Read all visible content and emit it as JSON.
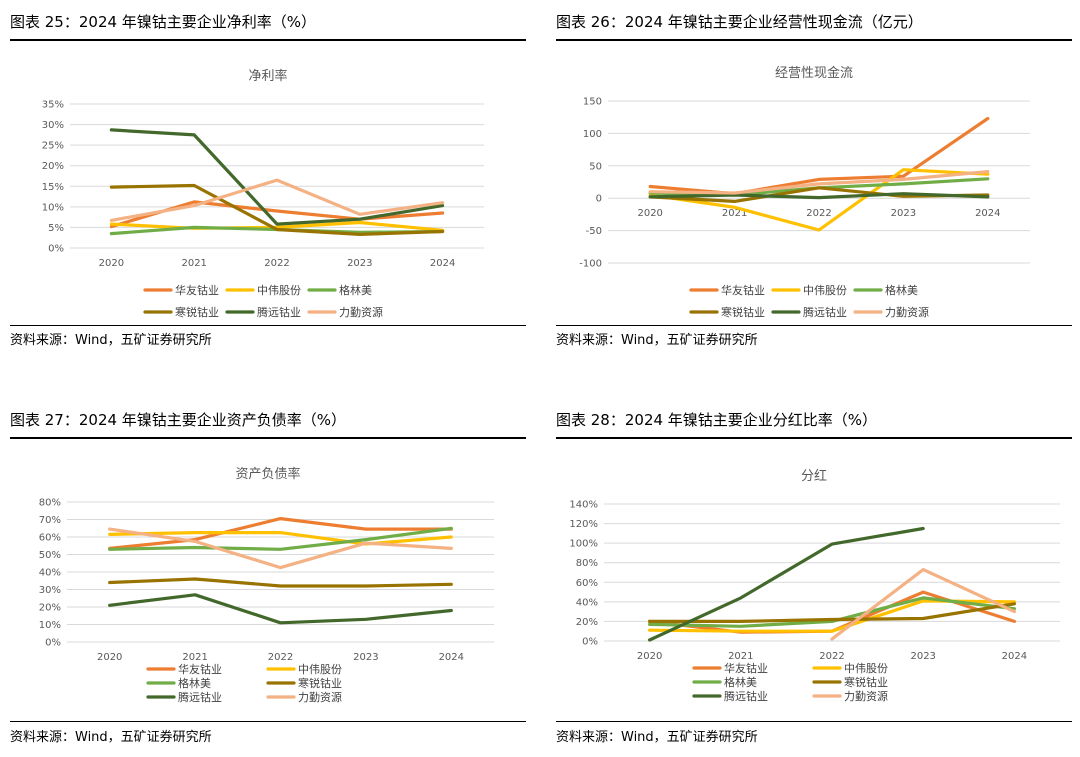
{
  "source_note": "资料来源：Wind，五矿证券研究所",
  "colors": {
    "华友钴业": "#ED7D31",
    "中伟股份": "#FFC000",
    "格林美": "#70AD47",
    "寒锐钴业": "#997300",
    "腾远钴业": "#43682B",
    "力勤资源": "#F4B183"
  },
  "panels": [
    {
      "title": "图表 25：2024 年镍钴主要企业净利率（%）",
      "legend_cols": 3,
      "chart_data": {
        "type": "line",
        "title": "净利率",
        "categories": [
          "2020",
          "2021",
          "2022",
          "2023",
          "2024"
        ],
        "yticks": [
          "0%",
          "5%",
          "10%",
          "15%",
          "20%",
          "25%",
          "30%",
          "35%"
        ],
        "ylim": [
          0,
          35
        ],
        "legend_position": "bottom",
        "grid": true,
        "series": [
          {
            "name": "华友钴业",
            "values": [
              5.2,
              11.2,
              9.0,
              7.0,
              8.5
            ]
          },
          {
            "name": "中伟股份",
            "values": [
              5.8,
              4.8,
              5.0,
              6.2,
              4.3
            ]
          },
          {
            "name": "格林美",
            "values": [
              3.5,
              5.0,
              4.5,
              3.8,
              4.0
            ]
          },
          {
            "name": "寒锐钴业",
            "values": [
              14.8,
              15.2,
              4.5,
              3.3,
              4.0
            ]
          },
          {
            "name": "腾远钴业",
            "values": [
              28.7,
              27.5,
              5.8,
              7.0,
              10.3
            ]
          },
          {
            "name": "力勤资源",
            "values": [
              6.7,
              10.3,
              16.5,
              8.2,
              11.0
            ]
          }
        ]
      }
    },
    {
      "title": "图表 26：2024 年镍钴主要企业经营性现金流（亿元）",
      "legend_cols": 3,
      "chart_data": {
        "type": "line",
        "title": "经营性现金流",
        "categories": [
          "2020",
          "2021",
          "2022",
          "2023",
          "2024"
        ],
        "yticks": [
          "-100",
          "-50",
          "0",
          "50",
          "100",
          "150"
        ],
        "ylim": [
          -100,
          150
        ],
        "legend_position": "bottom",
        "grid": true,
        "series": [
          {
            "name": "华友钴业",
            "values": [
              18,
              7,
              29,
              34,
              123
            ]
          },
          {
            "name": "中伟股份",
            "values": [
              5,
              -14,
              -49,
              44,
              37
            ]
          },
          {
            "name": "格林美",
            "values": [
              8,
              5,
              16,
              22,
              30
            ]
          },
          {
            "name": "寒锐钴业",
            "values": [
              2,
              -5,
              16,
              3,
              5
            ]
          },
          {
            "name": "腾远钴业",
            "values": [
              2,
              5,
              1,
              7,
              2
            ]
          },
          {
            "name": "力勤资源",
            "values": [
              10,
              8,
              22,
              29,
              41
            ]
          }
        ]
      }
    },
    {
      "title": "图表 27：2024 年镍钴主要企业资产负债率（%）",
      "legend_cols": 2,
      "chart_data": {
        "type": "line",
        "title": "资产负债率",
        "categories": [
          "2020",
          "2021",
          "2022",
          "2023",
          "2024"
        ],
        "yticks": [
          "0%",
          "10%",
          "20%",
          "30%",
          "40%",
          "50%",
          "60%",
          "70%",
          "80%"
        ],
        "ylim": [
          0,
          80
        ],
        "legend_position": "bottom",
        "grid": true,
        "series": [
          {
            "name": "华友钴业",
            "values": [
              53.5,
              58.5,
              70.5,
              64.5,
              64.5
            ]
          },
          {
            "name": "中伟股份",
            "values": [
              61.5,
              62.5,
              62.5,
              56,
              60
            ]
          },
          {
            "name": "格林美",
            "values": [
              53,
              54,
              53,
              58.5,
              65
            ]
          },
          {
            "name": "寒锐钴业",
            "values": [
              34,
              36,
              32,
              32,
              33
            ]
          },
          {
            "name": "腾远钴业",
            "values": [
              21,
              27,
              11,
              13,
              18
            ]
          },
          {
            "name": "力勤资源",
            "values": [
              64.5,
              57.5,
              42.5,
              56.5,
              53.5
            ]
          }
        ]
      }
    },
    {
      "title": "图表 28：2024 年镍钴主要企业分红比率（%）",
      "legend_cols": 2,
      "chart_data": {
        "type": "line",
        "title": "分红",
        "categories": [
          "2020",
          "2021",
          "2022",
          "2023",
          "2024"
        ],
        "yticks": [
          "0%",
          "20%",
          "40%",
          "60%",
          "80%",
          "100%",
          "120%",
          "140%"
        ],
        "ylim": [
          0,
          140
        ],
        "legend_position": "bottom",
        "grid": true,
        "series": [
          {
            "name": "华友钴业",
            "values": [
              20,
              9,
              10,
              50,
              20
            ]
          },
          {
            "name": "中伟股份",
            "values": [
              11,
              10,
              10,
              41,
              40
            ]
          },
          {
            "name": "格林美",
            "values": [
              17,
              15,
              20,
              44,
              33
            ]
          },
          {
            "name": "寒锐钴业",
            "values": [
              20,
              20,
              22,
              23,
              38
            ]
          },
          {
            "name": "腾远钴业",
            "values": [
              1,
              44,
              99,
              115,
              null
            ]
          },
          {
            "name": "力勤资源",
            "values": [
              null,
              null,
              2,
              73,
              30
            ]
          }
        ]
      }
    }
  ]
}
